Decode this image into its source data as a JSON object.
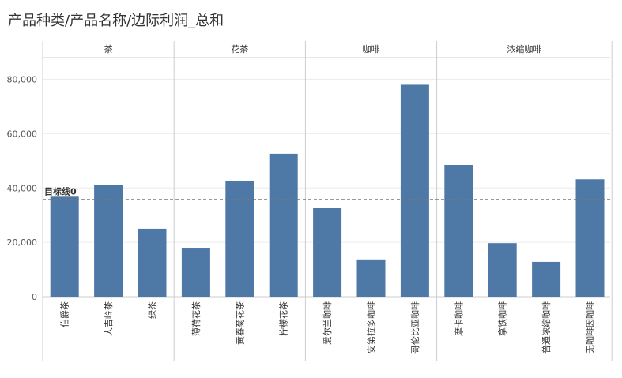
{
  "title": "产品种类/产品名称/边际利润_总和",
  "colors": {
    "bar": "#4e79a7",
    "grid": "#ececec",
    "pane_border": "#cccccc",
    "refline": "#777777"
  },
  "chart_data": {
    "type": "bar",
    "title": "产品种类/产品名称/边际利润_总和",
    "xlabel": "",
    "ylabel": "",
    "ylim": [
      0,
      88000
    ],
    "yticks": [
      0,
      20000,
      40000,
      60000,
      80000
    ],
    "ytick_labels": [
      "0",
      "20,000",
      "40,000",
      "60,000",
      "80,000"
    ],
    "grid": true,
    "reference_line": {
      "label": "目标线0",
      "value": 35800
    },
    "groups": [
      {
        "name": "茶",
        "categories": [
          "伯爵茶",
          "大吉岭茶",
          "绿茶"
        ],
        "values": [
          36800,
          41000,
          25000
        ]
      },
      {
        "name": "花茶",
        "categories": [
          "薄荷花茶",
          "黄春菊花茶",
          "柠檬花茶"
        ],
        "values": [
          18000,
          42700,
          52600
        ]
      },
      {
        "name": "咖啡",
        "categories": [
          "爱尔兰咖啡",
          "安第拉多咖啡",
          "哥伦比亚咖啡"
        ],
        "values": [
          32700,
          13700,
          78000
        ]
      },
      {
        "name": "浓缩咖啡",
        "categories": [
          "摩卡咖啡",
          "拿铁咖啡",
          "普通浓缩咖啡",
          "无咖啡因咖啡"
        ],
        "values": [
          48500,
          19700,
          12800,
          43200
        ]
      }
    ]
  }
}
